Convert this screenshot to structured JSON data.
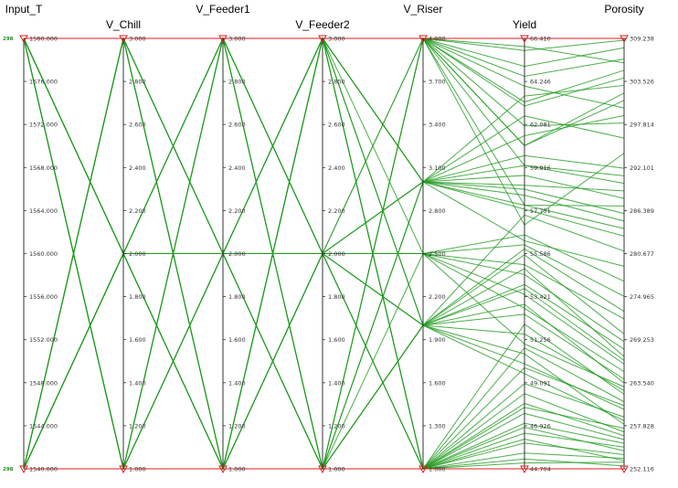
{
  "chart_data": {
    "type": "parallel-coordinates",
    "title": "",
    "colors": {
      "line": "#1f9a1f",
      "axis": "#333333",
      "bound": "#e11b1b",
      "count": "#2a8a2a"
    },
    "counts": {
      "top": "298",
      "bottom": "298"
    },
    "axes": [
      {
        "name": "Input_T",
        "min": 1540,
        "max": 1580,
        "ticks": [
          "1580.000",
          "1576.000",
          "1572.000",
          "1568.000",
          "1564.000",
          "1560.000",
          "1556.000",
          "1552.000",
          "1548.000",
          "1544.000",
          "1540.000"
        ]
      },
      {
        "name": "V_Chill",
        "min": 1,
        "max": 3,
        "ticks": [
          "3.000",
          "2.800",
          "2.600",
          "2.400",
          "2.200",
          "2.000",
          "1.800",
          "1.600",
          "1.400",
          "1.200",
          "1.000"
        ]
      },
      {
        "name": "V_Feeder1",
        "min": 1,
        "max": 3,
        "ticks": [
          "3.000",
          "2.800",
          "2.600",
          "2.400",
          "2.200",
          "2.000",
          "1.800",
          "1.600",
          "1.400",
          "1.200",
          "1.000"
        ]
      },
      {
        "name": "V_Feeder2",
        "min": 1,
        "max": 3,
        "ticks": [
          "3.000",
          "2.800",
          "2.600",
          "2.400",
          "2.200",
          "2.000",
          "1.800",
          "1.600",
          "1.400",
          "1.200",
          "1.000"
        ]
      },
      {
        "name": "V_Riser",
        "min": 1,
        "max": 4,
        "ticks": [
          "4.000",
          "3.700",
          "3.400",
          "3.100",
          "2.800",
          "2.500",
          "2.200",
          "1.900",
          "1.600",
          "1.300",
          "1.000"
        ]
      },
      {
        "name": "Yield",
        "min": 44.704,
        "max": 66.41,
        "ticks": [
          "66.410",
          "64.246",
          "62.081",
          "59.916",
          "57.751",
          "55.586",
          "53.421",
          "51.256",
          "49.091",
          "46.926",
          "44.704"
        ]
      },
      {
        "name": "Porosity",
        "min": 252.116,
        "max": 309.238,
        "ticks": [
          "309.238",
          "303.526",
          "297.814",
          "292.101",
          "286.389",
          "280.677",
          "274.965",
          "269.253",
          "263.540",
          "257.828",
          "252.116"
        ]
      }
    ],
    "samples": [
      [
        1580,
        3,
        3,
        3,
        4,
        66.0,
        306
      ],
      [
        1580,
        1,
        1,
        1,
        1,
        45.0,
        253
      ],
      [
        1540,
        3,
        3,
        3,
        4,
        64.0,
        300
      ],
      [
        1540,
        1,
        1,
        1,
        1,
        45.2,
        252.5
      ],
      [
        1580,
        3,
        1,
        3,
        1,
        52.0,
        262
      ],
      [
        1540,
        1,
        3,
        1,
        4,
        60.0,
        290
      ],
      [
        1580,
        2,
        2,
        2,
        2.5,
        56.0,
        275
      ],
      [
        1540,
        2,
        2,
        2,
        2.5,
        55.0,
        272
      ],
      [
        1580,
        1,
        3,
        3,
        3,
        62.5,
        296
      ],
      [
        1540,
        3,
        1,
        1,
        2,
        50.0,
        260
      ],
      [
        1580,
        2,
        3,
        1,
        1,
        46.5,
        255
      ],
      [
        1540,
        2,
        1,
        3,
        4,
        63.0,
        304
      ],
      [
        1580,
        3,
        2,
        1,
        3,
        58.0,
        284
      ],
      [
        1540,
        1,
        2,
        3,
        2,
        54.0,
        268
      ],
      [
        1580,
        1,
        1,
        3,
        4,
        61.0,
        302
      ],
      [
        1540,
        3,
        3,
        1,
        1,
        47.5,
        256
      ],
      [
        1580,
        2,
        1,
        2,
        2,
        52.5,
        264
      ],
      [
        1540,
        2,
        3,
        2,
        3,
        59.5,
        288
      ],
      [
        1580,
        3,
        1,
        1,
        4,
        57.0,
        294
      ],
      [
        1540,
        1,
        1,
        2,
        1,
        46.0,
        254
      ],
      [
        1580,
        1,
        2,
        1,
        2,
        50.5,
        258
      ],
      [
        1540,
        3,
        2,
        3,
        3,
        61.5,
        299
      ],
      [
        1580,
        2,
        2,
        3,
        4,
        65.0,
        308
      ],
      [
        1540,
        2,
        2,
        1,
        1,
        48.5,
        257
      ],
      [
        1580,
        3,
        3,
        2,
        2,
        55.5,
        270
      ],
      [
        1540,
        1,
        3,
        3,
        2,
        57.5,
        281
      ],
      [
        1580,
        1,
        2,
        2,
        3,
        60.5,
        292
      ],
      [
        1540,
        3,
        1,
        2,
        2.5,
        53.5,
        266
      ],
      [
        1580,
        2,
        1,
        1,
        1,
        45.5,
        253.5
      ],
      [
        1540,
        2,
        3,
        3,
        4,
        64.5,
        306.5
      ],
      [
        1580,
        3,
        2,
        2,
        1,
        49.0,
        259
      ],
      [
        1540,
        1,
        1,
        3,
        3,
        58.5,
        285
      ],
      [
        1580,
        1,
        3,
        2,
        2.5,
        56.5,
        277
      ],
      [
        1540,
        3,
        2,
        1,
        4,
        62.0,
        298
      ],
      [
        1580,
        2,
        3,
        2,
        3,
        60.0,
        291
      ],
      [
        1540,
        2,
        1,
        2,
        2,
        51.5,
        262.5
      ],
      [
        1580,
        3,
        1,
        3,
        2.5,
        54.5,
        269
      ],
      [
        1540,
        1,
        2,
        1,
        1,
        47.0,
        255.5
      ],
      [
        1580,
        1,
        1,
        1,
        2,
        49.5,
        258.5
      ],
      [
        1540,
        3,
        3,
        3,
        3,
        63.5,
        303
      ],
      [
        1580,
        2,
        2,
        1,
        4,
        58.0,
        287
      ],
      [
        1540,
        2,
        1,
        3,
        1,
        46.8,
        254.5
      ],
      [
        1580,
        3,
        3,
        1,
        2,
        53.0,
        263.5
      ],
      [
        1540,
        1,
        2,
        2,
        4,
        61.0,
        301
      ],
      [
        1580,
        1,
        3,
        1,
        3,
        57.8,
        283
      ],
      [
        1540,
        3,
        1,
        3,
        1,
        48.0,
        256.5
      ],
      [
        1580,
        2,
        1,
        3,
        3,
        59.0,
        289
      ],
      [
        1540,
        2,
        2,
        3,
        2,
        55.8,
        273
      ],
      [
        1580,
        3,
        2,
        3,
        4,
        65.8,
        309
      ],
      [
        1540,
        1,
        3,
        2,
        1,
        47.8,
        257.5
      ],
      [
        1580,
        1,
        1,
        2,
        2.5,
        52.8,
        265
      ],
      [
        1540,
        3,
        2,
        2,
        2,
        54.8,
        267
      ],
      [
        1580,
        2,
        3,
        3,
        1,
        50.8,
        261
      ],
      [
        1540,
        2,
        1,
        1,
        3,
        56.2,
        279
      ],
      [
        1580,
        3,
        1,
        2,
        3,
        58.8,
        286
      ],
      [
        1540,
        1,
        1,
        1,
        2.5,
        51.0,
        263
      ],
      [
        1580,
        1,
        2,
        3,
        1,
        49.8,
        260.5
      ],
      [
        1540,
        3,
        3,
        2,
        4,
        63.2,
        305
      ],
      [
        1580,
        2,
        2,
        2,
        1,
        46.2,
        253.2
      ],
      [
        1540,
        2,
        3,
        1,
        2,
        53.8,
        266.5
      ]
    ]
  }
}
